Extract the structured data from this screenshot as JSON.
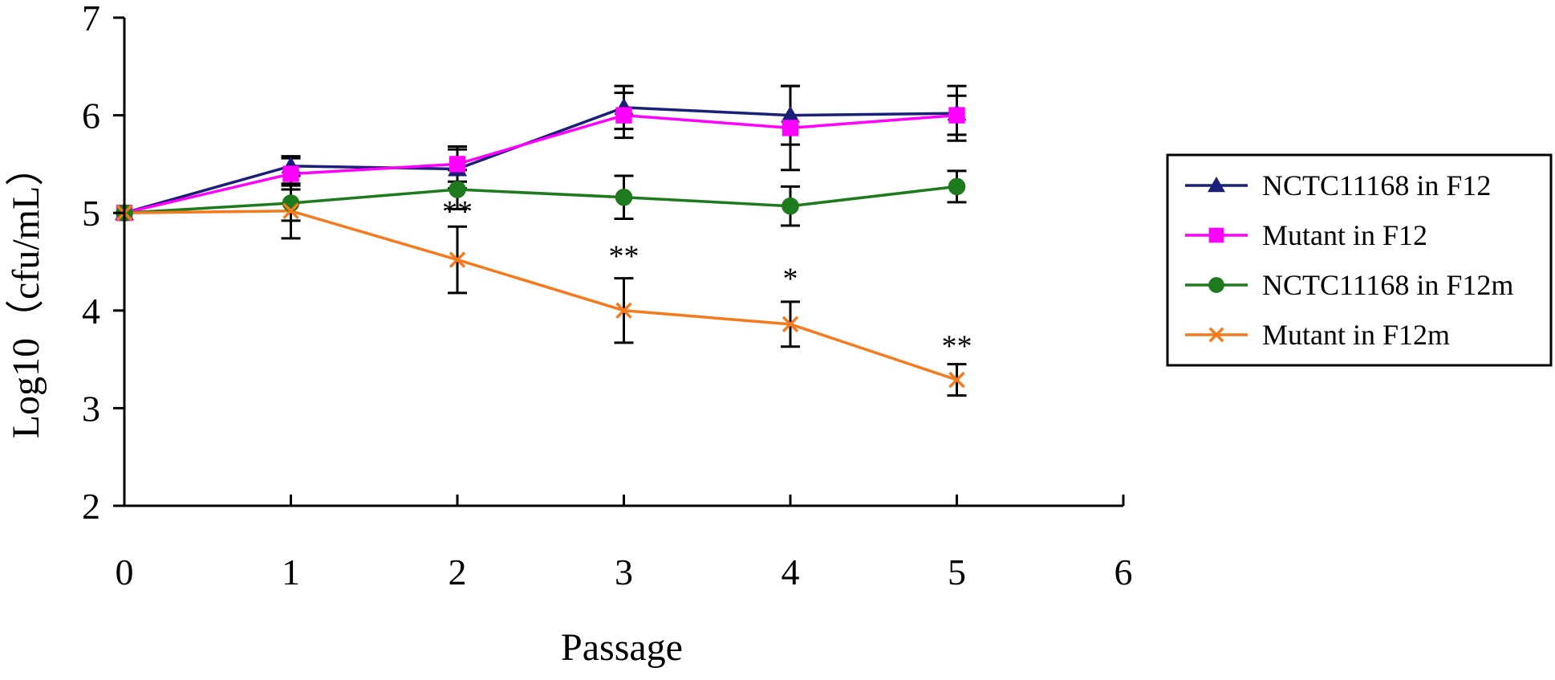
{
  "chart_data": {
    "type": "line",
    "title": "",
    "xlabel": "Passage",
    "ylabel": "Log10（cfu/mL）",
    "xlim": [
      0,
      6
    ],
    "ylim": [
      2,
      7
    ],
    "xticks": [
      0,
      1,
      2,
      3,
      4,
      5,
      6
    ],
    "yticks": [
      2,
      3,
      4,
      5,
      6,
      7
    ],
    "grid": false,
    "legend_position": "right",
    "x": [
      0,
      1,
      2,
      3,
      4,
      5
    ],
    "series": [
      {
        "name": "NCTC11168 in F12",
        "color": "#1a1f78",
        "marker": "triangle",
        "values": [
          5.0,
          5.48,
          5.45,
          6.08,
          6.0,
          6.02
        ],
        "errors": [
          0.0,
          0.1,
          0.2,
          0.22,
          0.3,
          0.28
        ]
      },
      {
        "name": "Mutant in F12",
        "color": "#ff00ff",
        "marker": "square",
        "values": [
          5.0,
          5.4,
          5.5,
          6.0,
          5.87,
          6.0
        ],
        "errors": [
          0.0,
          0.16,
          0.18,
          0.23,
          0.43,
          0.2
        ]
      },
      {
        "name": "NCTC11168 in F12m",
        "color": "#1d7a1d",
        "marker": "circle",
        "values": [
          5.0,
          5.1,
          5.24,
          5.16,
          5.07,
          5.27
        ],
        "errors": [
          0.0,
          0.18,
          0.2,
          0.22,
          0.2,
          0.16
        ]
      },
      {
        "name": "Mutant in F12m",
        "color": "#f57a1e",
        "marker": "x",
        "values": [
          5.0,
          5.02,
          4.52,
          4.0,
          3.86,
          3.29
        ],
        "errors": [
          0.0,
          0.28,
          0.34,
          0.33,
          0.23,
          0.16
        ]
      }
    ],
    "annotations": [
      {
        "x": 2,
        "y": 4.88,
        "text": "**"
      },
      {
        "x": 3,
        "y": 4.42,
        "text": "**"
      },
      {
        "x": 4,
        "y": 4.19,
        "text": "*"
      },
      {
        "x": 5,
        "y": 3.5,
        "text": "**"
      }
    ]
  }
}
